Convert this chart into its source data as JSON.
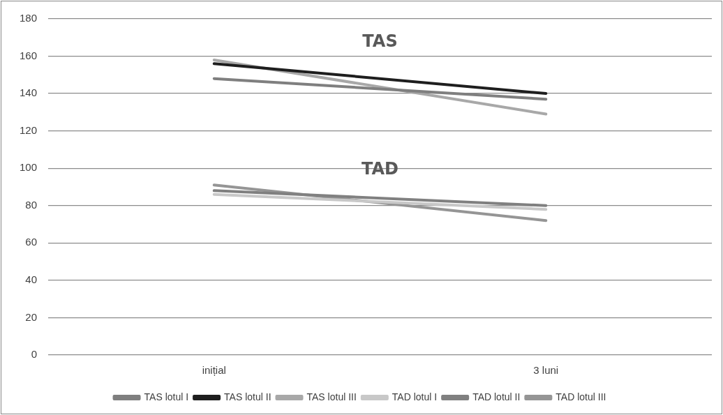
{
  "chart_data": {
    "type": "line",
    "categories": [
      "inițial",
      "3 luni"
    ],
    "series": [
      {
        "name": "TAS lotul I",
        "color": "#7f7f7f",
        "values": [
          148,
          137
        ]
      },
      {
        "name": "TAS lotul II",
        "color": "#1e1e1e",
        "values": [
          156,
          140
        ]
      },
      {
        "name": "TAS lotul III",
        "color": "#a8a8a8",
        "values": [
          158,
          129
        ]
      },
      {
        "name": "TAD lotul I",
        "color": "#c8c8c8",
        "values": [
          86,
          78
        ]
      },
      {
        "name": "TAD lotul II",
        "color": "#808080",
        "values": [
          88,
          80
        ]
      },
      {
        "name": "TAD lotul III",
        "color": "#959595",
        "values": [
          91,
          72
        ]
      }
    ],
    "ylim": [
      0,
      180
    ],
    "yticks": [
      0,
      20,
      40,
      60,
      80,
      100,
      120,
      140,
      160,
      180
    ],
    "grid": "y",
    "legend": "bottom",
    "marker": "none",
    "line_style": "solid",
    "annotations": [
      "TAS",
      "TAD"
    ]
  }
}
